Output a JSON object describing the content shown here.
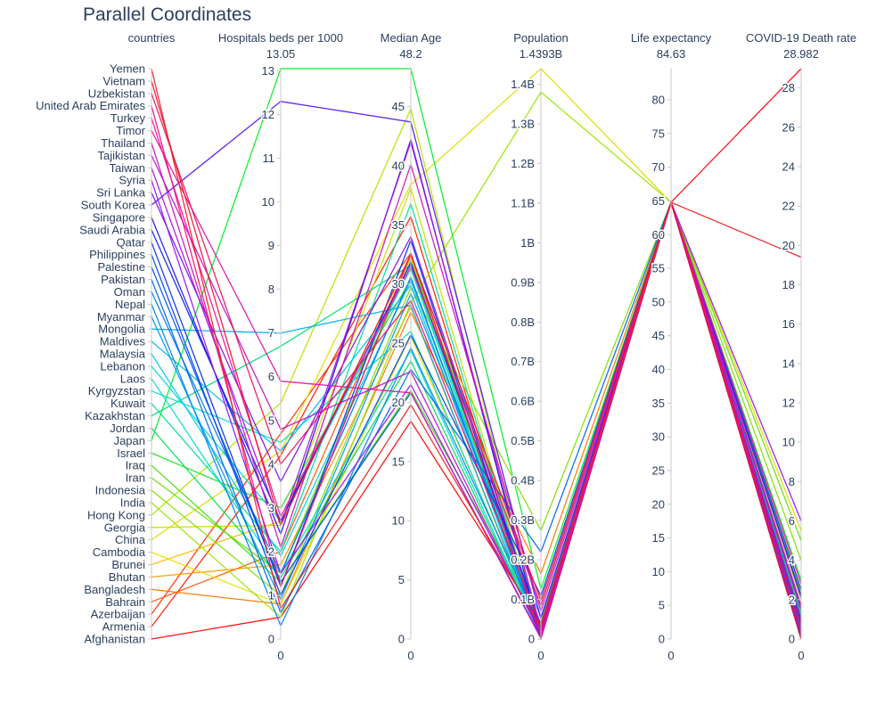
{
  "chart_data": {
    "type": "parallel_coordinates",
    "title": "Parallel Coordinates",
    "axes": [
      {
        "key": "country",
        "label": "countries",
        "max_label": "",
        "categorical": true
      },
      {
        "key": "beds",
        "label": "Hospitals beds per 1000",
        "max_label": "13.05",
        "range": [
          0,
          13.05
        ],
        "ticks": [
          0,
          1,
          2,
          3,
          4,
          5,
          6,
          7,
          8,
          9,
          10,
          11,
          12,
          13
        ]
      },
      {
        "key": "age",
        "label": "Median Age",
        "max_label": "48.2",
        "range": [
          0,
          48.2
        ],
        "ticks": [
          0,
          5,
          10,
          15,
          20,
          25,
          30,
          35,
          40,
          45
        ]
      },
      {
        "key": "pop",
        "label": "Population",
        "max_label": "1.4393B",
        "range": [
          0,
          1.4393
        ],
        "ticks": [
          0,
          0.1,
          0.2,
          0.3,
          0.4,
          0.5,
          0.6,
          0.7,
          0.8,
          0.9,
          1.0,
          1.1,
          1.2,
          1.3,
          1.4
        ],
        "tick_labels": [
          "0",
          "0.1B",
          "0.2B",
          "0.3B",
          "0.4B",
          "0.5B",
          "0.6B",
          "0.7B",
          "0.8B",
          "0.9B",
          "1B",
          "1.1B",
          "1.2B",
          "1.3B",
          "1.4B"
        ]
      },
      {
        "key": "life",
        "label": "Life expectancy",
        "max_label": "84.63",
        "range": [
          0,
          84.63
        ],
        "ticks": [
          0,
          5,
          10,
          15,
          20,
          25,
          30,
          35,
          40,
          45,
          50,
          55,
          60,
          65,
          70,
          75,
          80
        ]
      },
      {
        "key": "death",
        "label": "COVID-19 Death rate",
        "max_label": "28.982",
        "range": [
          0,
          28.982
        ],
        "ticks": [
          0,
          2,
          4,
          6,
          8,
          10,
          12,
          14,
          16,
          18,
          20,
          22,
          24,
          26,
          28
        ]
      }
    ],
    "categories": [
      "Afghanistan",
      "Armenia",
      "Azerbaijan",
      "Bahrain",
      "Bangladesh",
      "Bhutan",
      "Brunei",
      "Cambodia",
      "China",
      "Georgia",
      "Hong Kong",
      "India",
      "Indonesia",
      "Iran",
      "Iraq",
      "Israel",
      "Japan",
      "Jordan",
      "Kazakhstan",
      "Kuwait",
      "Kyrgyzstan",
      "Laos",
      "Lebanon",
      "Malaysia",
      "Maldives",
      "Mongolia",
      "Myanmar",
      "Nepal",
      "Oman",
      "Pakistan",
      "Palestine",
      "Philippines",
      "Qatar",
      "Saudi Arabia",
      "Singapore",
      "South Korea",
      "Sri Lanka",
      "Syria",
      "Taiwan",
      "Tajikistan",
      "Thailand",
      "Timor",
      "Turkey",
      "United Arab Emirates",
      "Uzbekistan",
      "Vietnam",
      "Yemen"
    ],
    "series": [
      {
        "beds": 0.5,
        "age": 18.4,
        "pop": 0.039,
        "life": 64.8,
        "death": 28.98,
        "color": "#ff0000"
      },
      {
        "beds": 4.2,
        "age": 35.7,
        "pop": 0.003,
        "life": 64.8,
        "death": 1.6,
        "color": "#ff1a00"
      },
      {
        "beds": 4.7,
        "age": 32.6,
        "pop": 0.01,
        "life": 64.8,
        "death": 1.2,
        "color": "#ff3300"
      },
      {
        "beds": 2.0,
        "age": 32.3,
        "pop": 0.002,
        "life": 64.8,
        "death": 0.4,
        "color": "#ff5500"
      },
      {
        "beds": 0.8,
        "age": 27.6,
        "pop": 0.165,
        "life": 64.8,
        "death": 1.4,
        "color": "#ff7700"
      },
      {
        "beds": 1.7,
        "age": 28.1,
        "pop": 0.0008,
        "life": 64.8,
        "death": 0.1,
        "color": "#ff9900"
      },
      {
        "beds": 2.7,
        "age": 32.3,
        "pop": 0.0004,
        "life": 64.8,
        "death": 1.0,
        "color": "#ffbb00"
      },
      {
        "beds": 0.8,
        "age": 25.6,
        "pop": 0.017,
        "life": 64.8,
        "death": 0.1,
        "color": "#eedd00"
      },
      {
        "beds": 4.3,
        "age": 38.4,
        "pop": 1.4393,
        "life": 64.8,
        "death": 5.5,
        "color": "#dddd00"
      },
      {
        "beds": 2.6,
        "age": 38.1,
        "pop": 0.004,
        "life": 64.8,
        "death": 2.0,
        "color": "#c8e000"
      },
      {
        "beds": 5.4,
        "age": 44.8,
        "pop": 0.0075,
        "life": 64.8,
        "death": 2.3,
        "color": "#b0e600"
      },
      {
        "beds": 0.5,
        "age": 28.4,
        "pop": 1.38,
        "life": 64.8,
        "death": 2.3,
        "color": "#99e600"
      },
      {
        "beds": 1.0,
        "age": 29.7,
        "pop": 0.274,
        "life": 64.8,
        "death": 4.0,
        "color": "#80e000"
      },
      {
        "beds": 1.5,
        "age": 32.0,
        "pop": 0.084,
        "life": 64.8,
        "death": 5.0,
        "color": "#66dd00"
      },
      {
        "beds": 1.3,
        "age": 21.0,
        "pop": 0.04,
        "life": 64.8,
        "death": 2.5,
        "color": "#44dd00"
      },
      {
        "beds": 3.0,
        "age": 30.4,
        "pop": 0.0087,
        "life": 64.8,
        "death": 1.0,
        "color": "#22dd22"
      },
      {
        "beds": 13.05,
        "age": 48.2,
        "pop": 0.126,
        "life": 64.8,
        "death": 3.0,
        "color": "#00ee22"
      },
      {
        "beds": 1.4,
        "age": 23.5,
        "pop": 0.01,
        "life": 64.8,
        "death": 1.2,
        "color": "#00e055"
      },
      {
        "beds": 6.7,
        "age": 31.6,
        "pop": 0.019,
        "life": 64.8,
        "death": 1.4,
        "color": "#00dd77"
      },
      {
        "beds": 2.0,
        "age": 36.8,
        "pop": 0.0043,
        "life": 64.8,
        "death": 0.6,
        "color": "#00dd99"
      },
      {
        "beds": 4.5,
        "age": 26.0,
        "pop": 0.0065,
        "life": 64.8,
        "death": 1.5,
        "color": "#00ddbb"
      },
      {
        "beds": 1.5,
        "age": 24.4,
        "pop": 0.0073,
        "life": 64.8,
        "death": 0.0,
        "color": "#00ddcc"
      },
      {
        "beds": 2.7,
        "age": 31.3,
        "pop": 0.0068,
        "life": 64.8,
        "death": 1.0,
        "color": "#00d5dd"
      },
      {
        "beds": 1.9,
        "age": 30.3,
        "pop": 0.032,
        "life": 64.8,
        "death": 0.8,
        "color": "#00ccee"
      },
      {
        "beds": 4.3,
        "age": 29.9,
        "pop": 0.0005,
        "life": 64.8,
        "death": 0.3,
        "color": "#00bbee"
      },
      {
        "beds": 7.0,
        "age": 28.2,
        "pop": 0.0033,
        "life": 64.8,
        "death": 0.0,
        "color": "#00aaee"
      },
      {
        "beds": 0.9,
        "age": 29.2,
        "pop": 0.054,
        "life": 64.8,
        "death": 1.1,
        "color": "#0099ee"
      },
      {
        "beds": 0.3,
        "age": 24.6,
        "pop": 0.029,
        "life": 64.8,
        "death": 0.6,
        "color": "#0088ee"
      },
      {
        "beds": 1.5,
        "age": 30.6,
        "pop": 0.005,
        "life": 64.8,
        "death": 0.5,
        "color": "#0077ee"
      },
      {
        "beds": 0.6,
        "age": 22.8,
        "pop": 0.22,
        "life": 64.8,
        "death": 2.1,
        "color": "#0066ee"
      },
      {
        "beds": 1.3,
        "age": 20.8,
        "pop": 0.005,
        "life": 64.8,
        "death": 0.7,
        "color": "#0055ee"
      },
      {
        "beds": 1.0,
        "age": 25.7,
        "pop": 0.109,
        "life": 64.8,
        "death": 2.5,
        "color": "#0044ee"
      },
      {
        "beds": 1.2,
        "age": 33.7,
        "pop": 0.003,
        "life": 64.8,
        "death": 0.1,
        "color": "#0033ee"
      },
      {
        "beds": 2.7,
        "age": 31.8,
        "pop": 0.035,
        "life": 64.8,
        "death": 0.8,
        "color": "#0022ee"
      },
      {
        "beds": 2.4,
        "age": 42.2,
        "pop": 0.006,
        "life": 64.8,
        "death": 0.05,
        "color": "#2211ee"
      },
      {
        "beds": 12.3,
        "age": 43.7,
        "pop": 0.051,
        "life": 64.8,
        "death": 2.2,
        "color": "#5511ee"
      },
      {
        "beds": 3.6,
        "age": 34.0,
        "pop": 0.021,
        "life": 64.8,
        "death": 0.4,
        "color": "#7711ee"
      },
      {
        "beds": 1.5,
        "age": 21.5,
        "pop": 0.017,
        "life": 64.8,
        "death": 6.0,
        "color": "#9911ee"
      },
      {
        "beds": 2.6,
        "age": 42.0,
        "pop": 0.024,
        "life": 64.8,
        "death": 1.5,
        "color": "#aa11dd"
      },
      {
        "beds": 4.8,
        "age": 22.6,
        "pop": 0.0095,
        "life": 64.8,
        "death": 1.0,
        "color": "#bb11cc"
      },
      {
        "beds": 2.1,
        "age": 40.1,
        "pop": 0.07,
        "life": 64.8,
        "death": 1.7,
        "color": "#cc11bb"
      },
      {
        "beds": 5.9,
        "age": 20.8,
        "pop": 0.0013,
        "life": 64.8,
        "death": 0.0,
        "color": "#dd11aa"
      },
      {
        "beds": 2.8,
        "age": 31.5,
        "pop": 0.084,
        "life": 64.8,
        "death": 2.8,
        "color": "#ee1199"
      },
      {
        "beds": 1.2,
        "age": 32.6,
        "pop": 0.0099,
        "life": 64.8,
        "death": 0.3,
        "color": "#ee1177"
      },
      {
        "beds": 4.0,
        "age": 28.6,
        "pop": 0.033,
        "life": 64.8,
        "death": 0.7,
        "color": "#ee1155"
      },
      {
        "beds": 2.6,
        "age": 32.5,
        "pop": 0.097,
        "life": 64.8,
        "death": 0.0,
        "color": "#ee1133"
      },
      {
        "beds": 0.7,
        "age": 19.8,
        "pop": 0.029,
        "life": 64.8,
        "death": 19.4,
        "color": "#ee2222"
      }
    ]
  }
}
